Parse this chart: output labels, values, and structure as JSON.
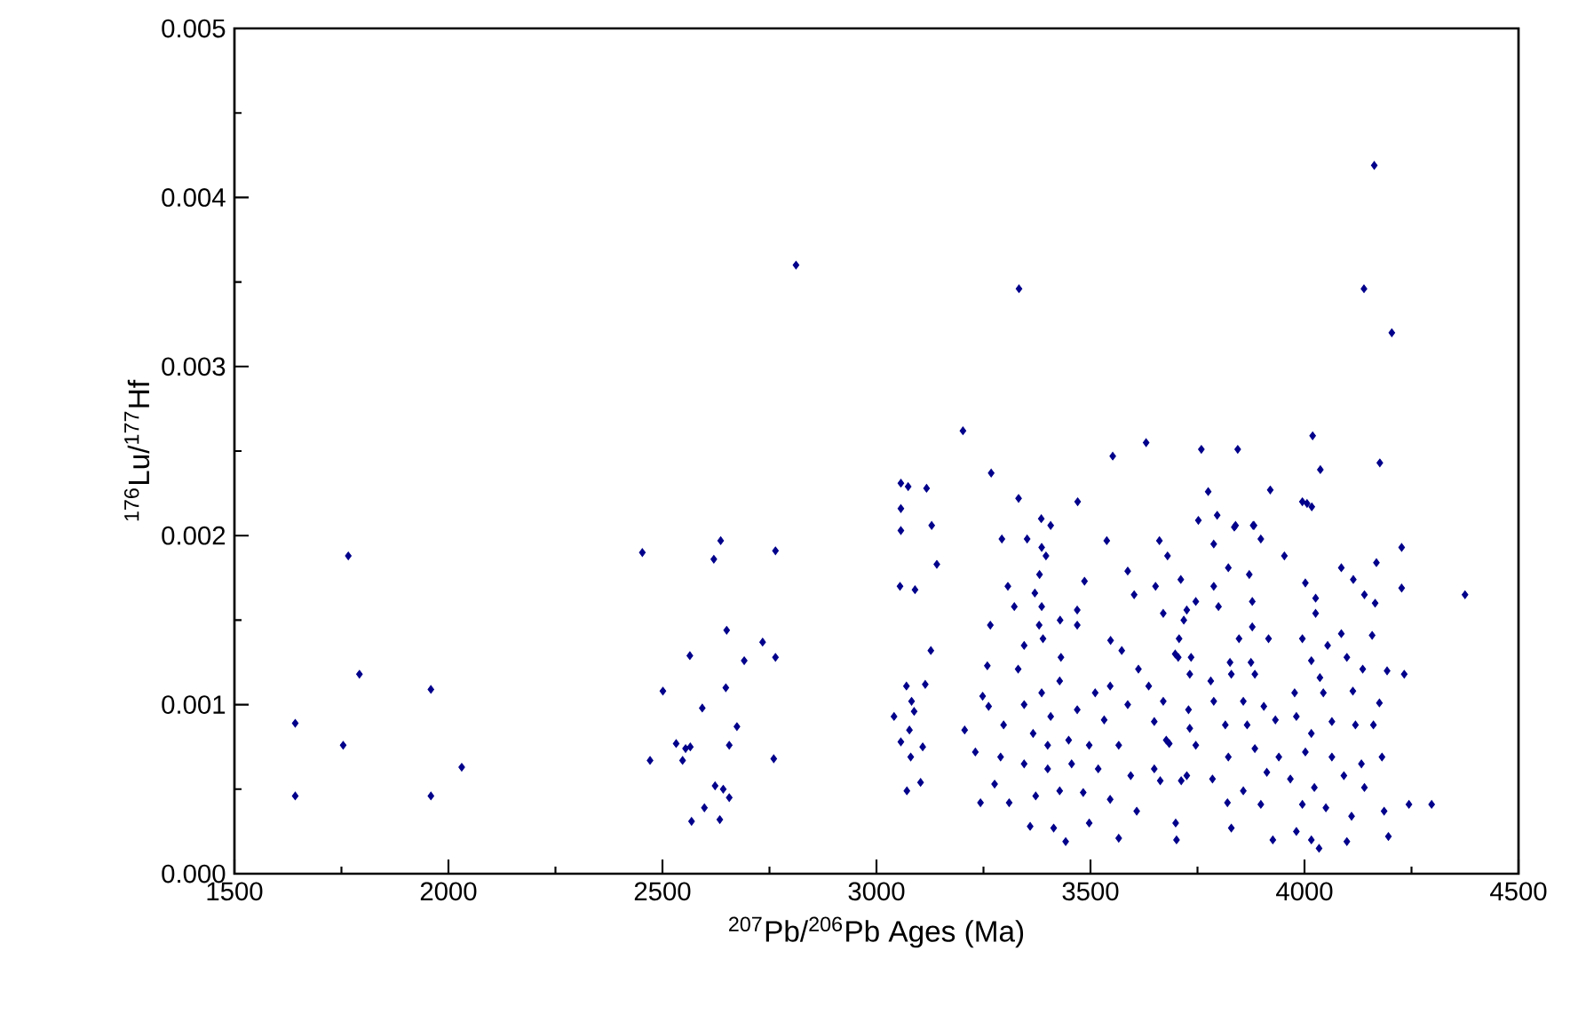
{
  "chart_data": {
    "type": "scatter",
    "xlabel": "$^{207}$Pb/$^{206}$Pb Ages (Ma)",
    "ylabel": "$^{176}$Lu/$^{177}$Hf",
    "xlim": [
      1500,
      4500
    ],
    "xticks": [
      1500,
      2000,
      2500,
      3000,
      3500,
      4000,
      4500
    ],
    "ylim": [
      0,
      0.005
    ],
    "yticks": [
      {
        "value": 0,
        "label": "0.000"
      },
      {
        "value": 0.001,
        "label": "0.001"
      },
      {
        "value": 0.002,
        "label": "0.002"
      },
      {
        "value": 0.003,
        "label": "0.003"
      },
      {
        "value": 0.004,
        "label": "0.004"
      },
      {
        "value": 0.005,
        "label": "0.005"
      }
    ],
    "marker": "diamond",
    "color": "#00008b",
    "x": [
      1642,
      1642,
      1754,
      1766,
      1792,
      1959,
      1959,
      2031,
      2453,
      2471,
      2501,
      2532,
      2547,
      2554,
      2565,
      2564,
      2568,
      2593,
      2598,
      2620,
      2623,
      2634,
      2636,
      2642,
      2648,
      2650,
      2656,
      2656,
      2674,
      2691,
      2734,
      2760,
      2764,
      2764,
      2812,
      3333,
      4163,
      4139,
      4204,
      3202,
      3630,
      3552,
      3759,
      3844,
      4019,
      4176,
      3268,
      4037,
      3057,
      3074,
      3117,
      3332,
      3470,
      3775,
      3920,
      3995,
      4017,
      3057,
      3385,
      3407,
      3752,
      3796,
      3880,
      3129,
      3839,
      4375,
      3057,
      3141,
      3055,
      3090,
      3127,
      3070,
      3114,
      3041,
      3082,
      3088,
      3077,
      3057,
      3108,
      3080,
      3103,
      3071,
      3206,
      3231,
      3243,
      3266,
      3259,
      3248,
      3262,
      3293,
      3352,
      3307,
      3322,
      3386,
      3396,
      3381,
      3370,
      3386,
      3429,
      3486,
      3538,
      3587,
      3602,
      3661,
      3680,
      3652,
      3711,
      3469,
      3469,
      3380,
      3345,
      3389,
      3431,
      3331,
      3547,
      3573,
      3612,
      3546,
      3511,
      3386,
      3428,
      3345,
      3407,
      3469,
      3532,
      3587,
      3636,
      3649,
      3366,
      3400,
      3449,
      3497,
      3566,
      3297,
      3290,
      3345,
      3400,
      3456,
      3518,
      3594,
      3649,
      3276,
      3310,
      3372,
      3428,
      3483,
      3546,
      3608,
      3359,
      3414,
      3442,
      3497,
      3566,
      3699,
      3701,
      3684,
      3725,
      3705,
      3725,
      3836,
      3882,
      3788,
      3898,
      3953,
      4227,
      4168,
      4086,
      4114,
      4227,
      3822,
      3871,
      3788,
      3746,
      3799,
      3878,
      4002,
      4026,
      4026,
      4140,
      4165,
      3670,
      3718,
      3878,
      3847,
      3916,
      3995,
      4086,
      4158,
      3707,
      3698,
      3735,
      3826,
      3875,
      4016,
      4054,
      4099,
      4136,
      4193,
      4233,
      3732,
      3781,
      3829,
      3884,
      4036,
      3670,
      3729,
      3788,
      3857,
      3905,
      3977,
      4044,
      4113,
      4175,
      3677,
      3732,
      3746,
      3815,
      3866,
      3932,
      3981,
      4016,
      4064,
      4119,
      4161,
      3822,
      3884,
      3940,
      4002,
      4064,
      4133,
      4181,
      3663,
      3712,
      3785,
      3857,
      3912,
      3967,
      4023,
      4092,
      4140,
      3820,
      3898,
      3995,
      4050,
      4110,
      4186,
      4244,
      4297,
      3829,
      3926,
      3981,
      4016,
      4034,
      4099,
      4196,
      4006
    ],
    "values": [
      0.00089,
      0.00046,
      0.00076,
      0.00188,
      0.00118,
      0.00109,
      0.00046,
      0.00063,
      0.0019,
      0.00067,
      0.00108,
      0.00077,
      0.00067,
      0.00074,
      0.00075,
      0.00129,
      0.00031,
      0.00098,
      0.00039,
      0.00186,
      0.00052,
      0.00032,
      0.00197,
      0.0005,
      0.0011,
      0.00144,
      0.00076,
      0.00045,
      0.00087,
      0.00126,
      0.00137,
      0.00068,
      0.00191,
      0.00128,
      0.0036,
      0.00346,
      0.00419,
      0.00346,
      0.0032,
      0.00262,
      0.00255,
      0.00247,
      0.00251,
      0.00251,
      0.00259,
      0.00243,
      0.00237,
      0.00239,
      0.00231,
      0.00229,
      0.00228,
      0.00222,
      0.0022,
      0.00226,
      0.00227,
      0.0022,
      0.00217,
      0.00216,
      0.0021,
      0.00206,
      0.00209,
      0.00212,
      0.00206,
      0.00206,
      0.00206,
      0.00165,
      0.00203,
      0.00183,
      0.0017,
      0.00168,
      0.00132,
      0.00111,
      0.00112,
      0.00093,
      0.00102,
      0.00096,
      0.00085,
      0.00078,
      0.00075,
      0.00069,
      0.00054,
      0.00049,
      0.00085,
      0.00072,
      0.00042,
      0.00147,
      0.00123,
      0.00105,
      0.00099,
      0.00198,
      0.00198,
      0.0017,
      0.00158,
      0.00193,
      0.00188,
      0.00177,
      0.00166,
      0.00158,
      0.0015,
      0.00173,
      0.00197,
      0.00179,
      0.00165,
      0.00197,
      0.00188,
      0.0017,
      0.00174,
      0.00156,
      0.00147,
      0.00147,
      0.00135,
      0.00139,
      0.00128,
      0.00121,
      0.00138,
      0.00132,
      0.00121,
      0.00111,
      0.00107,
      0.00107,
      0.00114,
      0.001,
      0.00093,
      0.00097,
      0.00091,
      0.001,
      0.00111,
      0.0009,
      0.00083,
      0.00076,
      0.00079,
      0.00076,
      0.00076,
      0.00088,
      0.00069,
      0.00065,
      0.00062,
      0.00065,
      0.00062,
      0.00058,
      0.00062,
      0.00053,
      0.00042,
      0.00046,
      0.00049,
      0.00048,
      0.00044,
      0.00037,
      0.00028,
      0.00027,
      0.00019,
      0.0003,
      0.00021,
      0.0003,
      0.0002,
      0.00077,
      0.00058,
      0.00128,
      0.00156,
      0.00205,
      0.00206,
      0.00195,
      0.00198,
      0.00188,
      0.00193,
      0.00184,
      0.00181,
      0.00174,
      0.00169,
      0.00181,
      0.00177,
      0.0017,
      0.00161,
      0.00158,
      0.00161,
      0.00172,
      0.00163,
      0.00154,
      0.00165,
      0.0016,
      0.00154,
      0.0015,
      0.00146,
      0.00139,
      0.00139,
      0.00139,
      0.00142,
      0.00141,
      0.00139,
      0.0013,
      0.00128,
      0.00125,
      0.00125,
      0.00126,
      0.00135,
      0.00128,
      0.00121,
      0.0012,
      0.00118,
      0.00118,
      0.00114,
      0.00118,
      0.00118,
      0.00116,
      0.00102,
      0.00097,
      0.00102,
      0.00102,
      0.00099,
      0.00107,
      0.00107,
      0.00108,
      0.00101,
      0.00079,
      0.00086,
      0.00076,
      0.00088,
      0.00088,
      0.00091,
      0.00093,
      0.00083,
      0.0009,
      0.00088,
      0.00088,
      0.00069,
      0.00074,
      0.00069,
      0.00072,
      0.00069,
      0.00065,
      0.00069,
      0.00055,
      0.00055,
      0.00056,
      0.00049,
      0.0006,
      0.00056,
      0.00051,
      0.00058,
      0.00051,
      0.00042,
      0.00041,
      0.00041,
      0.00039,
      0.00034,
      0.00037,
      0.00041,
      0.00041,
      0.00027,
      0.0002,
      0.00025,
      0.0002,
      0.00015,
      0.00019,
      0.00022,
      0.00219
    ]
  }
}
